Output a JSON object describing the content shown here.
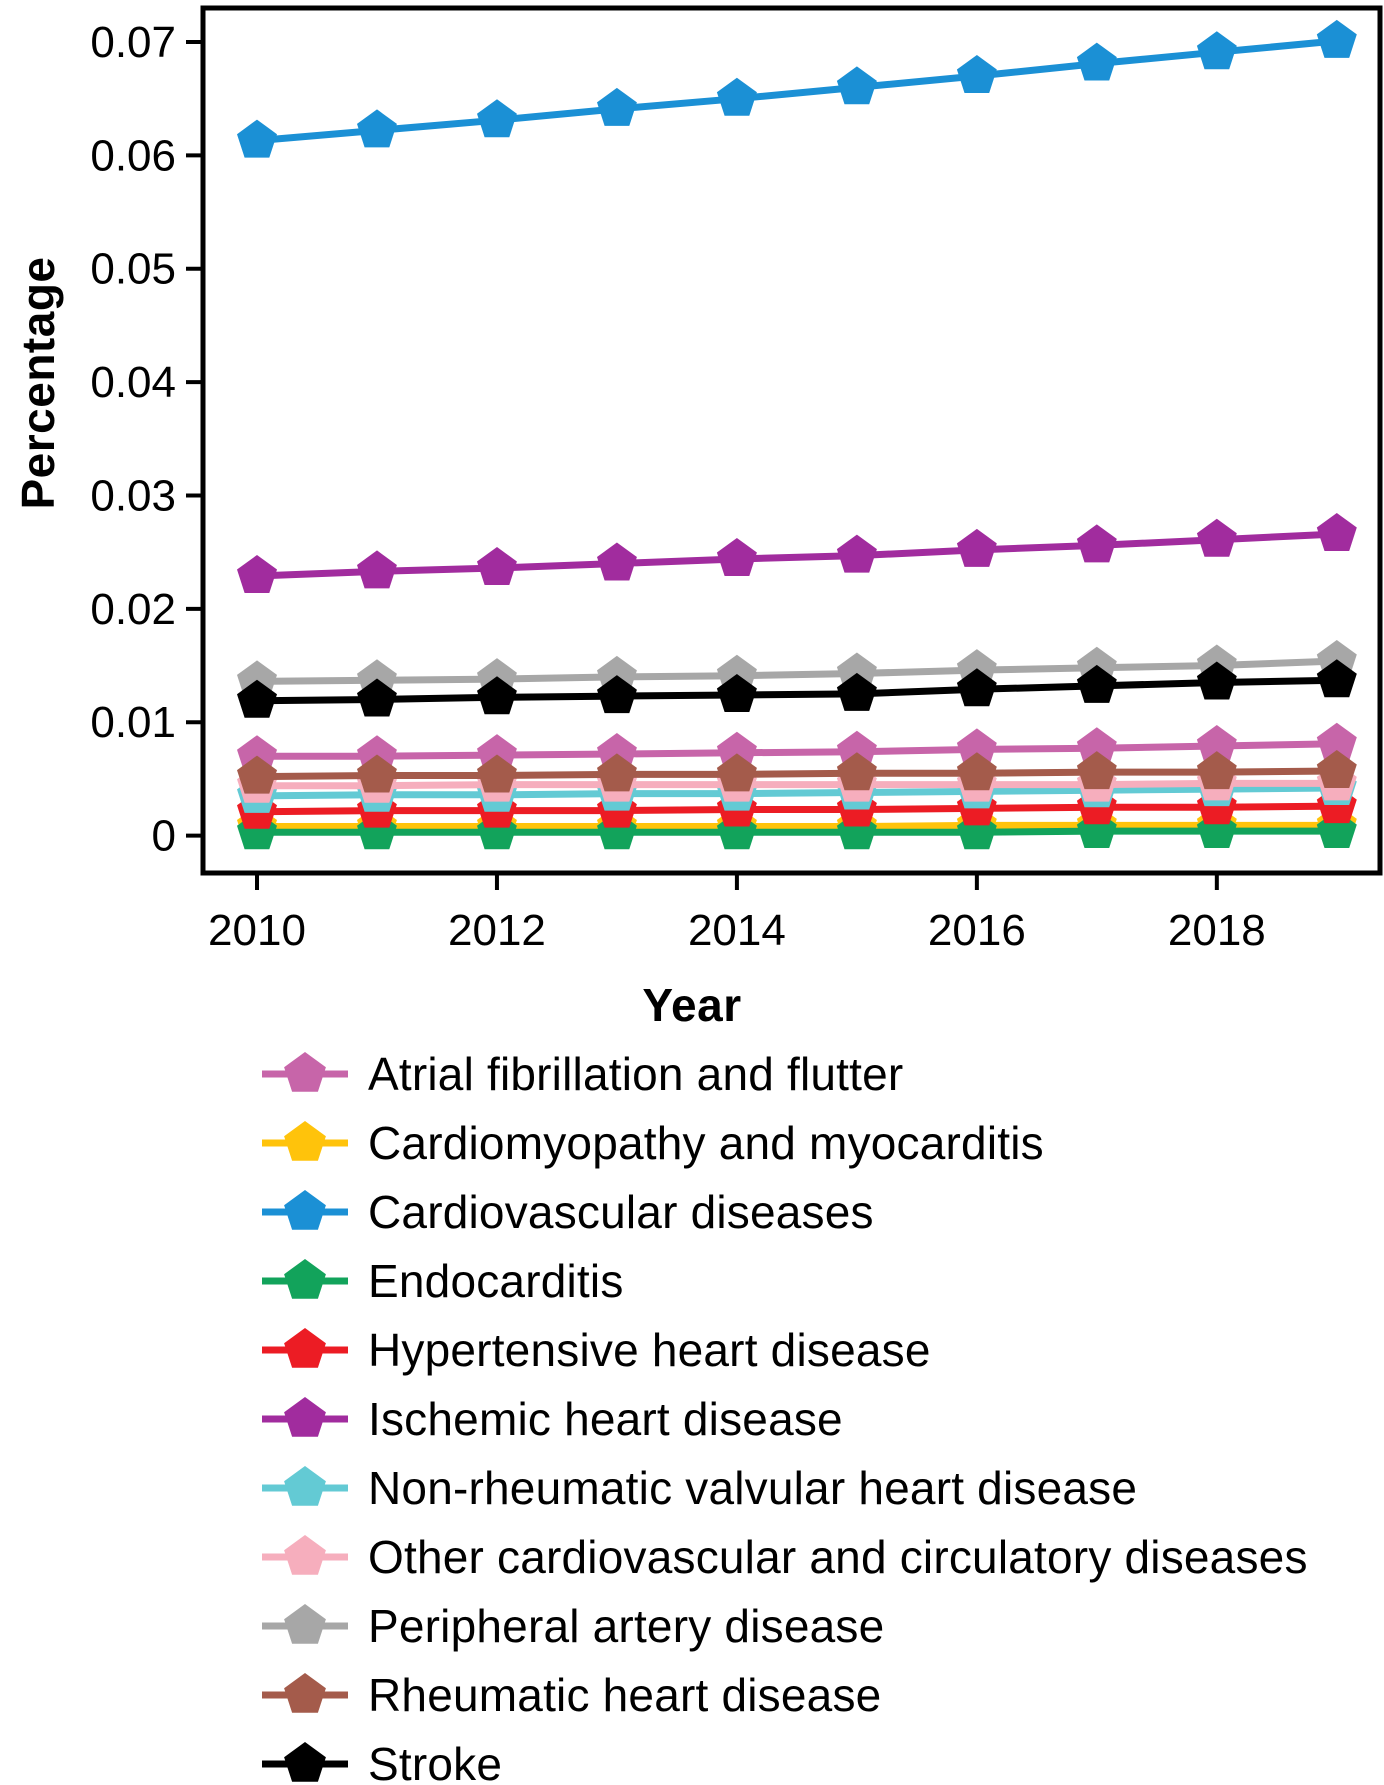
{
  "chart_data": {
    "type": "line",
    "title": "",
    "xlabel": "Year",
    "ylabel": "Percentage",
    "grid": false,
    "legend_position": "bottom-left",
    "marker": "pentagon",
    "x": [
      2010,
      2011,
      2012,
      2013,
      2014,
      2015,
      2016,
      2017,
      2018,
      2019
    ],
    "x_ticks": [
      2010,
      2012,
      2014,
      2016,
      2018
    ],
    "x_tick_labels": [
      "2010",
      "2012",
      "2014",
      "2016",
      "2018"
    ],
    "y_ticks": [
      0,
      0.01,
      0.02,
      0.03,
      0.04,
      0.05,
      0.06,
      0.07
    ],
    "y_tick_labels": [
      "0",
      "0.01",
      "0.02",
      "0.03",
      "0.04",
      "0.05",
      "0.06",
      "0.07"
    ],
    "xlim": [
      2009.55,
      2019.36
    ],
    "ylim": [
      -0.0033,
      0.073
    ],
    "axis_color": "#000000",
    "series": [
      {
        "name": "Atrial fibrillation and flutter",
        "color": "#C765A9",
        "values": [
          0.007,
          0.007,
          0.0071,
          0.0072,
          0.0073,
          0.0074,
          0.0076,
          0.0077,
          0.0079,
          0.0081
        ]
      },
      {
        "name": "Cardiomyopathy and myocarditis",
        "color": "#FFC30B",
        "values": [
          0.0008,
          0.0008,
          0.0008,
          0.0008,
          0.0008,
          0.0008,
          0.0009,
          0.0009,
          0.0009,
          0.0009
        ]
      },
      {
        "name": "Cardiovascular diseases",
        "color": "#1B90D5",
        "values": [
          0.0613,
          0.0622,
          0.0631,
          0.0641,
          0.065,
          0.066,
          0.067,
          0.0681,
          0.0691,
          0.0701
        ]
      },
      {
        "name": "Endocarditis",
        "color": "#12A35B",
        "values": [
          0.0003,
          0.0003,
          0.0003,
          0.0003,
          0.0003,
          0.0003,
          0.0003,
          0.0004,
          0.0004,
          0.0004
        ]
      },
      {
        "name": "Hypertensive heart disease",
        "color": "#EC1C24",
        "values": [
          0.0021,
          0.0022,
          0.0022,
          0.0022,
          0.0023,
          0.0023,
          0.0024,
          0.0025,
          0.0025,
          0.0026
        ]
      },
      {
        "name": "Ischemic heart disease",
        "color": "#A12C9E",
        "values": [
          0.0229,
          0.0233,
          0.0236,
          0.024,
          0.0244,
          0.0247,
          0.0252,
          0.0256,
          0.0261,
          0.0266
        ]
      },
      {
        "name": "Non-rheumatic valvular heart disease",
        "color": "#63CAD4",
        "values": [
          0.0035,
          0.0036,
          0.0036,
          0.0037,
          0.0037,
          0.0038,
          0.0039,
          0.004,
          0.0041,
          0.0042
        ]
      },
      {
        "name": "Other cardiovascular and circulatory diseases",
        "color": "#F6AEBD",
        "values": [
          0.0044,
          0.0044,
          0.0045,
          0.0045,
          0.0045,
          0.0045,
          0.0045,
          0.0045,
          0.0046,
          0.0046
        ]
      },
      {
        "name": "Peripheral artery disease",
        "color": "#A7A7A7",
        "values": [
          0.0136,
          0.0137,
          0.0138,
          0.014,
          0.0141,
          0.0143,
          0.0146,
          0.0148,
          0.015,
          0.0154
        ]
      },
      {
        "name": "Rheumatic heart disease",
        "color": "#A45B4B",
        "values": [
          0.0052,
          0.0053,
          0.0053,
          0.0054,
          0.0054,
          0.0055,
          0.0055,
          0.0056,
          0.0056,
          0.0057
        ]
      },
      {
        "name": "Stroke",
        "color": "#000000",
        "values": [
          0.0119,
          0.012,
          0.0122,
          0.0123,
          0.0124,
          0.0125,
          0.0129,
          0.0132,
          0.0135,
          0.0137
        ]
      }
    ]
  }
}
